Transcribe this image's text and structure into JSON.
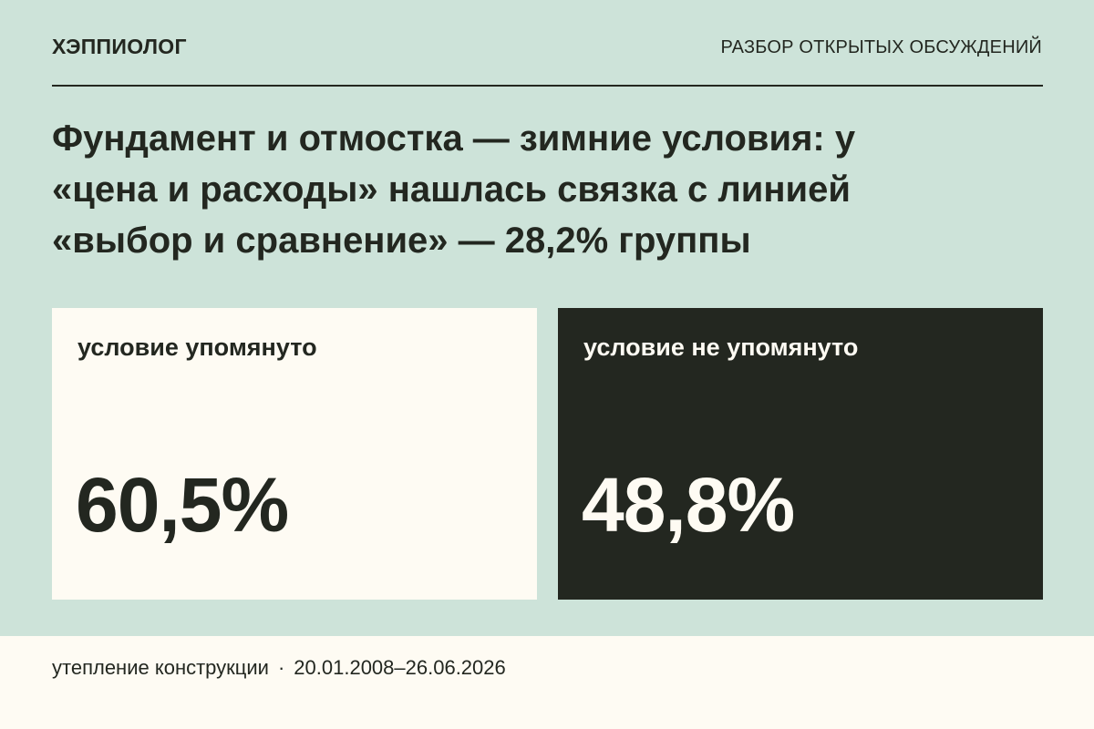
{
  "header": {
    "brand": "ХЭППИОЛОГ",
    "section": "РАЗБОР ОТКРЫТЫХ ОБСУЖДЕНИЙ"
  },
  "headline": {
    "line1": "Фундамент и отмостка — зимние условия: у",
    "line2": "«цена и расходы» нашлась связка с линией",
    "line3": "«выбор и сравнение» — 28,2% группы"
  },
  "cards": [
    {
      "label": "условие упомянуто",
      "value": "60,5%",
      "background": "#fefbf3",
      "text_color": "#232720"
    },
    {
      "label": "условие не упомянуто",
      "value": "48,8%",
      "background": "#232720",
      "text_color": "#fefbf3"
    }
  ],
  "footer": {
    "topic": "утепление конструкции",
    "separator": "·",
    "period": "20.01.2008–26.06.2026"
  },
  "colors": {
    "background": "#cde3d9",
    "accent_dark": "#232720",
    "paper": "#fefbf3"
  }
}
